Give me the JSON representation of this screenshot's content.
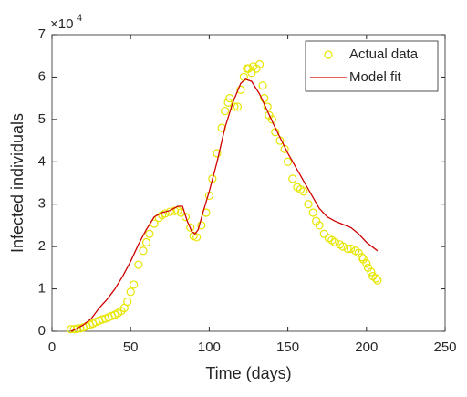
{
  "chart_data": {
    "type": "scatter_line",
    "xlabel": "Time (days)",
    "ylabel": "Infected individuals",
    "y_exponent_base": "×10",
    "y_exponent": "4",
    "xlim": [
      0,
      250
    ],
    "xticks": [
      0,
      50,
      100,
      150,
      200,
      250
    ],
    "ylim": [
      0,
      7
    ],
    "yticks": [
      0,
      1,
      2,
      3,
      4,
      5,
      6,
      7
    ],
    "legend": "northeast",
    "series": [
      {
        "name": "Actual data",
        "kind": "markers",
        "color": "#e6e600",
        "x": [
          12,
          14,
          16,
          18,
          20,
          22,
          24,
          26,
          28,
          30,
          32,
          34,
          36,
          38,
          40,
          42,
          44,
          46,
          48,
          50,
          52,
          55,
          58,
          60,
          62,
          65,
          68,
          70,
          72,
          75,
          78,
          80,
          82,
          85,
          88,
          90,
          92,
          95,
          98,
          100,
          102,
          105,
          108,
          110,
          112,
          113,
          116,
          118,
          120,
          122,
          124,
          125,
          127,
          128,
          130,
          132,
          134,
          135,
          137,
          138,
          140,
          142,
          145,
          148,
          150,
          153,
          156,
          158,
          160,
          163,
          166,
          168,
          170,
          173,
          176,
          178,
          180,
          183,
          185,
          188,
          190,
          193,
          195,
          197,
          198,
          200,
          201,
          203,
          204,
          206,
          207
        ],
        "y": [
          0.05,
          0.05,
          0.06,
          0.07,
          0.09,
          0.12,
          0.15,
          0.18,
          0.22,
          0.25,
          0.28,
          0.3,
          0.33,
          0.36,
          0.39,
          0.43,
          0.48,
          0.55,
          0.7,
          0.93,
          1.1,
          1.57,
          1.9,
          2.1,
          2.3,
          2.54,
          2.68,
          2.74,
          2.78,
          2.82,
          2.84,
          2.85,
          2.8,
          2.7,
          2.45,
          2.25,
          2.22,
          2.5,
          2.8,
          3.2,
          3.6,
          4.2,
          4.8,
          5.2,
          5.4,
          5.5,
          5.3,
          5.3,
          5.7,
          6.0,
          6.2,
          6.2,
          6.1,
          6.25,
          6.2,
          6.3,
          5.8,
          5.5,
          5.3,
          5.1,
          5.0,
          4.7,
          4.5,
          4.3,
          4.0,
          3.6,
          3.4,
          3.35,
          3.3,
          3.0,
          2.8,
          2.6,
          2.5,
          2.3,
          2.2,
          2.15,
          2.1,
          2.05,
          2.0,
          1.95,
          1.95,
          1.9,
          1.85,
          1.75,
          1.7,
          1.6,
          1.5,
          1.4,
          1.3,
          1.25,
          1.2
        ]
      },
      {
        "name": "Model fit",
        "kind": "line",
        "color": "#d00000",
        "x": [
          12,
          15,
          20,
          25,
          30,
          35,
          40,
          45,
          50,
          55,
          60,
          65,
          70,
          75,
          80,
          83,
          86,
          89,
          91,
          93,
          96,
          100,
          105,
          110,
          115,
          120,
          123,
          127,
          132,
          137,
          142,
          150,
          160,
          170,
          175,
          180,
          190,
          195,
          200,
          207
        ],
        "y": [
          0,
          0.05,
          0.15,
          0.3,
          0.55,
          0.75,
          1.0,
          1.3,
          1.65,
          2.05,
          2.4,
          2.7,
          2.8,
          2.85,
          2.95,
          2.95,
          2.6,
          2.35,
          2.3,
          2.4,
          2.8,
          3.3,
          4.0,
          4.8,
          5.4,
          5.85,
          5.95,
          5.9,
          5.6,
          5.2,
          4.8,
          4.2,
          3.55,
          2.9,
          2.7,
          2.6,
          2.45,
          2.3,
          2.1,
          1.9
        ]
      }
    ]
  }
}
